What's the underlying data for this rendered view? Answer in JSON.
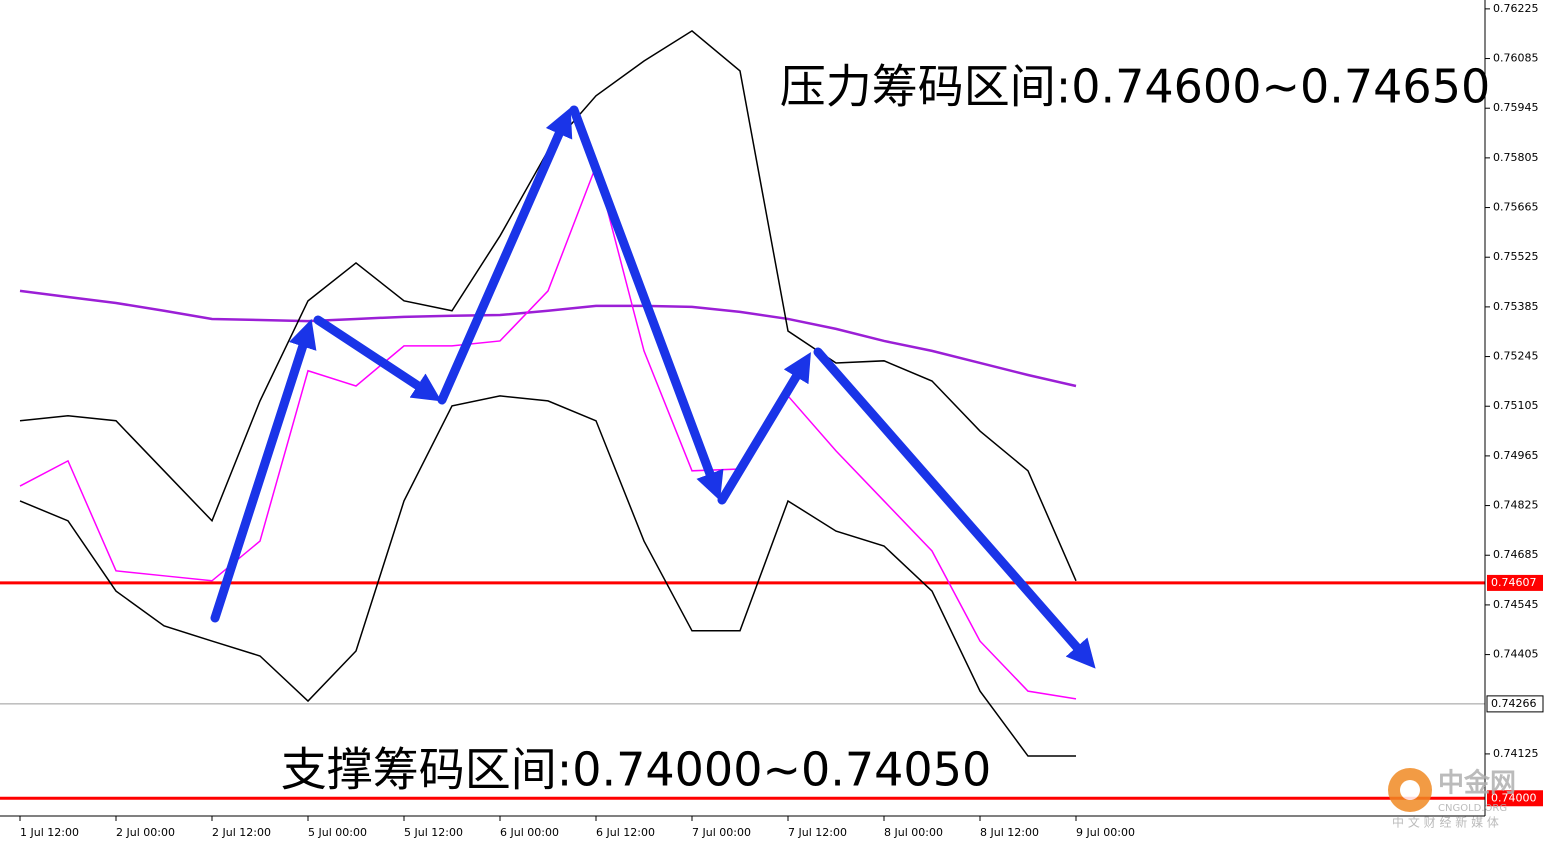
{
  "chart_data": {
    "type": "line",
    "annotations": [
      "压力筹码区间:0.74600~0.74650",
      "支撑筹码区间:0.74000~0.74050"
    ],
    "categories": [
      "1 Jul 12:00",
      null,
      "2 Jul 00:00",
      null,
      "2 Jul 12:00",
      null,
      "5 Jul 00:00",
      null,
      "5 Jul 12:00",
      null,
      "6 Jul 00:00",
      null,
      "6 Jul 12:00",
      null,
      "7 Jul 00:00",
      null,
      "7 Jul 12:00",
      null,
      "8 Jul 00:00",
      null,
      "8 Jul 12:00",
      null,
      "9 Jul 00:00"
    ],
    "series": [
      {
        "color": "#9b1fd6",
        "values": [
          0.7543,
          0.75413,
          0.75396,
          0.75374,
          0.75351,
          0.75348,
          0.75345,
          0.75351,
          0.75357,
          0.7536,
          0.75362,
          0.75374,
          0.75388,
          0.75388,
          0.75385,
          0.75371,
          0.75351,
          0.75323,
          0.75289,
          0.75261,
          0.75227,
          0.75193,
          0.75162
        ]
      },
      {
        "color": "#000000",
        "values": [
          0.75064,
          0.75078,
          0.75064,
          0.74923,
          0.74782,
          0.7512,
          0.75402,
          0.75509,
          0.75402,
          0.75374,
          0.75585,
          0.75825,
          0.7598,
          0.76078,
          0.76163,
          0.7605,
          0.75317,
          0.75227,
          0.75233,
          0.75176,
          0.75035,
          0.74923,
          0.74613
        ]
      },
      {
        "color": "#000000",
        "values": [
          0.74838,
          0.74782,
          0.74584,
          0.74486,
          0.74443,
          0.74401,
          0.74274,
          0.74415,
          0.74838,
          0.75106,
          0.75134,
          0.7512,
          0.75064,
          0.74725,
          0.74472,
          0.74472,
          0.74838,
          0.74753,
          0.74711,
          0.74584,
          0.74302,
          0.74119,
          0.74119
        ]
      },
      {
        "color": "#ff00ff",
        "values": [
          0.7488,
          0.74951,
          0.74641,
          0.74627,
          0.74613,
          0.74725,
          0.75205,
          0.75162,
          0.75275,
          0.75275,
          0.75289,
          0.7543,
          0.75782,
          0.75261,
          0.74923,
          0.74928,
          0.75134,
          0.74979,
          0.74838,
          0.74697,
          0.74443,
          0.74302,
          0.7428
        ]
      }
    ],
    "ylim": [
      0.7395,
      0.7625
    ],
    "yticks": [
      0.76225,
      0.76085,
      0.75945,
      0.75805,
      0.75665,
      0.75525,
      0.75385,
      0.75245,
      0.75105,
      0.74965,
      0.74825,
      0.74685,
      0.74545,
      0.74405,
      0.74125
    ],
    "hlines": [
      {
        "value": 0.74607,
        "color": "#ff0000"
      },
      {
        "value": 0.74266,
        "color": "#9a9a9a"
      },
      {
        "value": 0.74,
        "label": "0.74000",
        "color": "#ff0000"
      }
    ],
    "watermark": {
      "brand": "中金网",
      "site": "CNGOLD.ORG",
      "slogan": "中 文 财 经 新 媒 体"
    }
  }
}
